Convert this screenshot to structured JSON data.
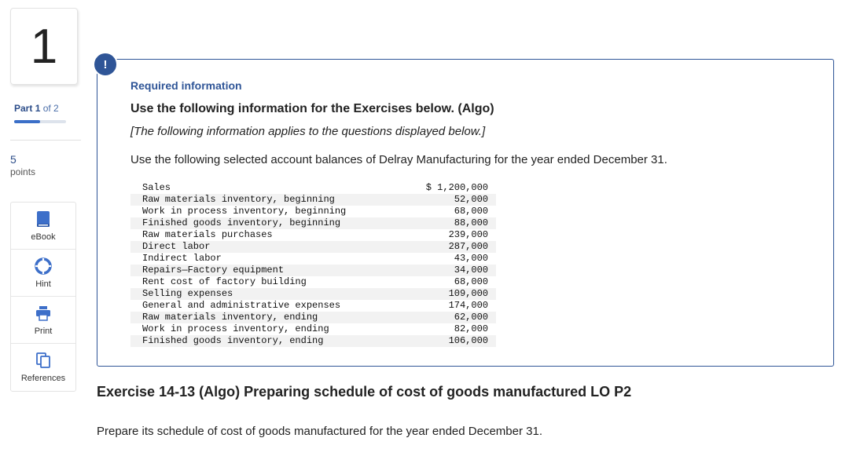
{
  "question": {
    "number": "1"
  },
  "progress": {
    "part_word": "Part",
    "part_current": "1",
    "part_of": "of 2",
    "fraction": 0.5
  },
  "points": {
    "value": "5",
    "label": "points"
  },
  "tools": [
    {
      "label": "eBook",
      "icon": "book-icon"
    },
    {
      "label": "Hint",
      "icon": "lifebuoy-icon"
    },
    {
      "label": "Print",
      "icon": "printer-icon"
    },
    {
      "label": "References",
      "icon": "copy-icon"
    }
  ],
  "card": {
    "alert_symbol": "!",
    "required": "Required information",
    "heading": "Use the following information for the Exercises below. (Algo)",
    "note": "[The following information applies to the questions displayed below.]",
    "intro": "Use the following selected account balances of Delray Manufacturing for the year ended December 31.",
    "rows": [
      {
        "label": "Sales",
        "value": "$ 1,200,000"
      },
      {
        "label": "Raw materials inventory, beginning",
        "value": "52,000"
      },
      {
        "label": "Work in process inventory, beginning",
        "value": "68,000"
      },
      {
        "label": "Finished goods inventory, beginning",
        "value": "88,000"
      },
      {
        "label": "Raw materials purchases",
        "value": "239,000"
      },
      {
        "label": "Direct labor",
        "value": "287,000"
      },
      {
        "label": "Indirect labor",
        "value": "43,000"
      },
      {
        "label": "Repairs—Factory equipment",
        "value": "34,000"
      },
      {
        "label": "Rent cost of factory building",
        "value": "68,000"
      },
      {
        "label": "Selling expenses",
        "value": "109,000"
      },
      {
        "label": "General and administrative expenses",
        "value": "174,000"
      },
      {
        "label": "Raw materials inventory, ending",
        "value": "62,000"
      },
      {
        "label": "Work in process inventory, ending",
        "value": "82,000"
      },
      {
        "label": "Finished goods inventory, ending",
        "value": "106,000"
      }
    ]
  },
  "exercise": {
    "title": "Exercise 14-13 (Algo) Preparing schedule of cost of goods manufactured LO P2",
    "prompt": "Prepare its schedule of cost of goods manufactured for the year ended December 31."
  },
  "colors": {
    "accent": "#2f5597",
    "link": "#4a6ea9"
  }
}
